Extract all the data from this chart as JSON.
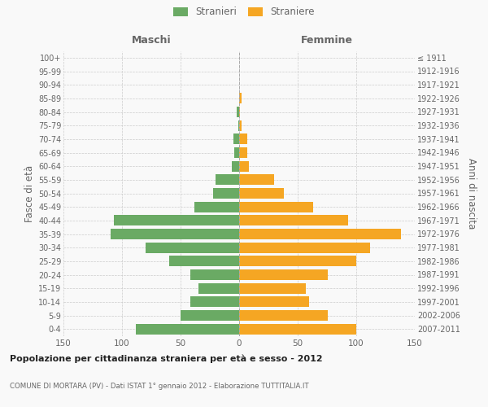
{
  "age_groups": [
    "0-4",
    "5-9",
    "10-14",
    "15-19",
    "20-24",
    "25-29",
    "30-34",
    "35-39",
    "40-44",
    "45-49",
    "50-54",
    "55-59",
    "60-64",
    "65-69",
    "70-74",
    "75-79",
    "80-84",
    "85-89",
    "90-94",
    "95-99",
    "100+"
  ],
  "birth_years": [
    "2007-2011",
    "2002-2006",
    "1997-2001",
    "1992-1996",
    "1987-1991",
    "1982-1986",
    "1977-1981",
    "1972-1976",
    "1967-1971",
    "1962-1966",
    "1957-1961",
    "1952-1956",
    "1947-1951",
    "1942-1946",
    "1937-1941",
    "1932-1936",
    "1927-1931",
    "1922-1926",
    "1917-1921",
    "1912-1916",
    "≤ 1911"
  ],
  "maschi": [
    88,
    50,
    42,
    35,
    42,
    60,
    80,
    110,
    107,
    38,
    22,
    20,
    6,
    4,
    5,
    1,
    2,
    0,
    0,
    0,
    0
  ],
  "femmine": [
    100,
    76,
    60,
    57,
    76,
    100,
    112,
    138,
    93,
    63,
    38,
    30,
    8,
    7,
    7,
    2,
    1,
    2,
    0,
    0,
    0
  ],
  "color_maschi": "#6aaa64",
  "color_femmine": "#f5a623",
  "title": "Popolazione per cittadinanza straniera per età e sesso - 2012",
  "subtitle": "COMUNE DI MORTARA (PV) - Dati ISTAT 1° gennaio 2012 - Elaborazione TUTTITALIA.IT",
  "xlabel_left": "Maschi",
  "xlabel_right": "Femmine",
  "ylabel_left": "Fasce di età",
  "ylabel_right": "Anni di nascita",
  "legend_stranieri": "Stranieri",
  "legend_straniere": "Straniere",
  "xlim": 150,
  "bg_color": "#f9f9f9",
  "grid_color": "#cccccc",
  "text_color": "#666666",
  "title_color": "#222222"
}
